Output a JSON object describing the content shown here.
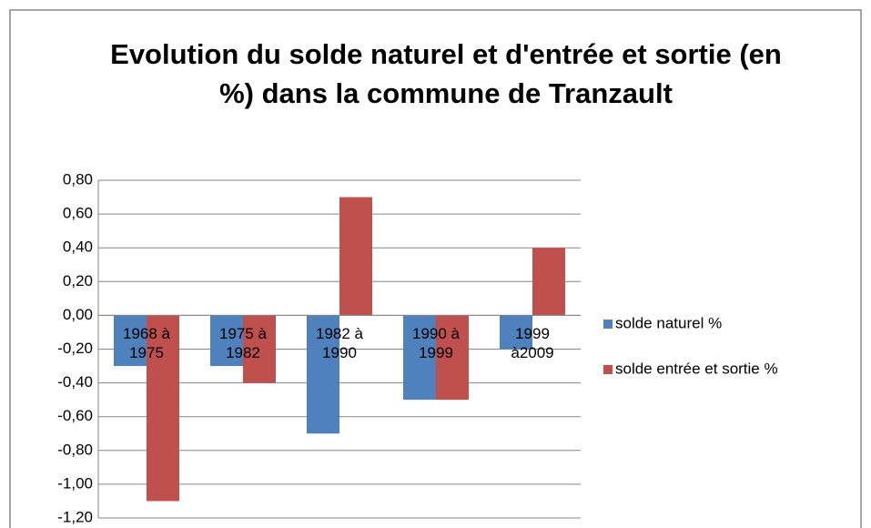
{
  "chart_data": {
    "type": "bar",
    "title": "Evolution du solde naturel et d'entrée et sortie (en %) dans la commune de Tranzault",
    "categories": [
      "1968 à 1975",
      "1975 à 1982",
      "1982 à 1990",
      "1990 à 1999",
      "1999 à2009"
    ],
    "series": [
      {
        "name": "solde naturel %",
        "color": "#4f81bd",
        "values": [
          -0.3,
          -0.3,
          -0.7,
          -0.5,
          -0.2
        ]
      },
      {
        "name": "solde entrée et sortie %",
        "color": "#c0504d",
        "values": [
          -1.1,
          -0.4,
          0.7,
          -0.5,
          0.4
        ]
      }
    ],
    "ylim": [
      -1.2,
      0.8
    ],
    "yticks": [
      {
        "value": 0.8,
        "label": "0,80"
      },
      {
        "value": 0.6,
        "label": "0,60"
      },
      {
        "value": 0.4,
        "label": "0,40"
      },
      {
        "value": 0.2,
        "label": "0,20"
      },
      {
        "value": 0,
        "label": "0,00"
      },
      {
        "value": -0.2,
        "label": "-0,20"
      },
      {
        "value": -0.4,
        "label": "-0,40"
      },
      {
        "value": -0.6,
        "label": "-0,60"
      },
      {
        "value": -0.8,
        "label": "-0,80"
      },
      {
        "value": -1,
        "label": "-1,00"
      },
      {
        "value": -1.2,
        "label": "-1,20"
      }
    ],
    "grid": true,
    "legend": "right"
  }
}
